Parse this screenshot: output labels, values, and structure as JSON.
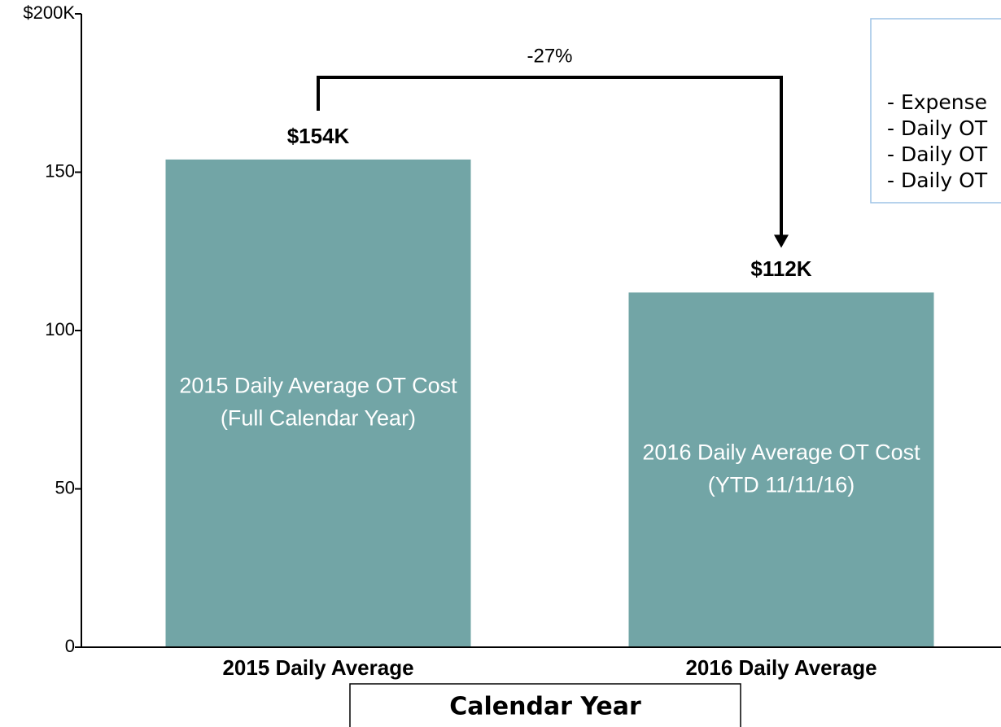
{
  "chart_data": {
    "type": "bar",
    "categories": [
      "2015 Daily Average",
      "2016 Daily Average"
    ],
    "values": [
      154,
      112
    ],
    "value_labels": [
      "$154K",
      "$112K"
    ],
    "bar_texts": [
      [
        "2015 Daily Average OT Cost",
        "(Full Calendar Year)"
      ],
      [
        "2016 Daily Average OT Cost",
        "(YTD 11/11/16)"
      ]
    ],
    "color": "#72a5a6",
    "ylim": [
      0,
      200
    ],
    "yticks": [
      0,
      50,
      100,
      150,
      {
        "value": 200,
        "label": "$200K"
      }
    ],
    "annotation": "-27%",
    "legend_lines": [
      "- Expense",
      "- Daily OT",
      "- Daily OT",
      "- Daily OT"
    ],
    "xlabel": "Calendar Year"
  }
}
